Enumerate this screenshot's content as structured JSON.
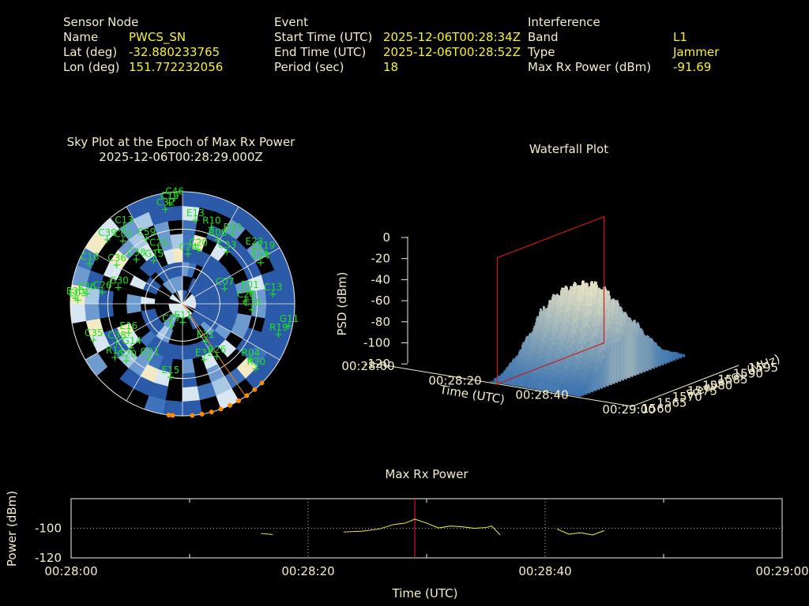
{
  "header": {
    "sensor_node": {
      "heading": "Sensor Node",
      "rows": [
        {
          "label": "Name",
          "value": "PWCS_SN"
        },
        {
          "label": "Lat (deg)",
          "value": "-32.880233765"
        },
        {
          "label": "Lon (deg)",
          "value": "151.772232056"
        }
      ]
    },
    "event": {
      "heading": "Event",
      "rows": [
        {
          "label": "Start Time (UTC)",
          "value": "2025-12-06T00:28:34Z"
        },
        {
          "label": "End Time (UTC)",
          "value": "2025-12-06T00:28:52Z"
        },
        {
          "label": "Period (sec)",
          "value": "18"
        }
      ]
    },
    "interference": {
      "heading": "Interference",
      "rows": [
        {
          "label": "Band",
          "value": "L1"
        },
        {
          "label": "Type",
          "value": "Jammer"
        },
        {
          "label": "Max Rx Power (dBm)",
          "value": "-91.69"
        }
      ]
    }
  },
  "colors": {
    "label": "#f5eecb",
    "value": "#f6f13a",
    "satellite": "#1fe01f",
    "marker": "#ff8c00",
    "series": "#f6f13a",
    "cursor": "#d01818",
    "waterfall_low": "#5c8fc8",
    "waterfall_high": "#f7edc4"
  },
  "chart_data": [
    {
      "type": "scatter",
      "id": "sky-plot",
      "title": "Sky Plot at the Epoch of Max Rx Power",
      "subtitle": "2025-12-06T00:28:29.000Z",
      "projection": "polar",
      "satellites": [
        {
          "id": "C13",
          "az": 322,
          "el": 12
        },
        {
          "id": "C39",
          "az": 310,
          "el": 10
        },
        {
          "id": "C19",
          "az": 352,
          "el": 8
        },
        {
          "id": "C46",
          "az": 355,
          "el": 5
        },
        {
          "id": "C32",
          "az": 349,
          "el": 13
        },
        {
          "id": "E13",
          "az": 8,
          "el": 22
        },
        {
          "id": "C36",
          "az": 300,
          "el": 28
        },
        {
          "id": "C16",
          "az": 293,
          "el": 8
        },
        {
          "id": "C38",
          "az": 313,
          "el": 38
        },
        {
          "id": "C01",
          "az": 316,
          "el": 20
        },
        {
          "id": "C59",
          "az": 330,
          "el": 30
        },
        {
          "id": "R10",
          "az": 20,
          "el": 25
        },
        {
          "id": "R08",
          "az": 28,
          "el": 32
        },
        {
          "id": "R93",
          "az": 35,
          "el": 22
        },
        {
          "id": "C25",
          "az": 335,
          "el": 42
        },
        {
          "id": "G15",
          "az": 325,
          "el": 48
        },
        {
          "id": "C20",
          "az": 15,
          "el": 45
        },
        {
          "id": "C24",
          "az": 5,
          "el": 50
        },
        {
          "id": "C33",
          "az": 40,
          "el": 36
        },
        {
          "id": "E23",
          "az": 52,
          "el": 18
        },
        {
          "id": "E19",
          "az": 58,
          "el": 12
        },
        {
          "id": "E24",
          "az": 62,
          "el": 20
        },
        {
          "id": "C26",
          "az": 278,
          "el": 24
        },
        {
          "id": "G30",
          "az": 284,
          "el": 36
        },
        {
          "id": "E03",
          "az": 272,
          "el": 5
        },
        {
          "id": "E30",
          "az": 273,
          "el": 3
        },
        {
          "id": "E36",
          "az": 276,
          "el": 12
        },
        {
          "id": "C07",
          "az": 70,
          "el": 55
        },
        {
          "id": "E01",
          "az": 80,
          "el": 36
        },
        {
          "id": "C13b",
          "az": 84,
          "el": 18
        },
        {
          "id": "C28",
          "az": 88,
          "el": 40
        },
        {
          "id": "E16",
          "az": 242,
          "el": 40
        },
        {
          "id": "C30",
          "az": 95,
          "el": 35
        },
        {
          "id": "C27",
          "az": 210,
          "el": 70
        },
        {
          "id": "E11",
          "az": 182,
          "el": 75
        },
        {
          "id": "C38b",
          "az": 240,
          "el": 28
        },
        {
          "id": "C35",
          "az": 248,
          "el": 12
        },
        {
          "id": "G14",
          "az": 230,
          "el": 35
        },
        {
          "id": "R11",
          "az": 232,
          "el": 20
        },
        {
          "id": "G20",
          "az": 225,
          "el": 25
        },
        {
          "id": "G21",
          "az": 212,
          "el": 38
        },
        {
          "id": "E31",
          "az": 150,
          "el": 55
        },
        {
          "id": "R19",
          "az": 108,
          "el": 10
        },
        {
          "id": "G11",
          "az": 102,
          "el": 4
        },
        {
          "id": "R26",
          "az": 148,
          "el": 40
        },
        {
          "id": "E32",
          "az": 160,
          "el": 42
        },
        {
          "id": "R04",
          "az": 130,
          "el": 20
        },
        {
          "id": "R20",
          "az": 132,
          "el": 12
        },
        {
          "id": "E15",
          "az": 190,
          "el": 30
        }
      ],
      "interference_markers": [
        {
          "az": 135,
          "el": 0
        },
        {
          "az": 140,
          "el": 0
        },
        {
          "az": 145,
          "el": 0
        },
        {
          "az": 150,
          "el": 0
        },
        {
          "az": 155,
          "el": 0
        },
        {
          "az": 160,
          "el": 0
        },
        {
          "az": 165,
          "el": 0
        },
        {
          "az": 170,
          "el": 0
        },
        {
          "az": 175,
          "el": 0
        },
        {
          "az": 185,
          "el": 0
        },
        {
          "az": 187,
          "el": 0
        }
      ]
    },
    {
      "type": "heatmap",
      "id": "waterfall-plot",
      "title": "Waterfall Plot",
      "xlabel": "Time (UTC)",
      "ylabel": "Frequency (MHz)",
      "zlabel": "PSD (dBm)",
      "x_ticks": [
        "00:28:00",
        "00:28:20",
        "00:28:40",
        "00:29:00"
      ],
      "y_ticks": [
        "1560",
        "1565",
        "1570",
        "1575",
        "1580",
        "1585",
        "1590",
        "1595"
      ],
      "z_ticks": [
        "0",
        "-20",
        "-40",
        "-60",
        "-80",
        "-100",
        "-120"
      ],
      "zlim": [
        -120,
        0
      ],
      "ylim": [
        1560,
        1595
      ],
      "cursor_time": "00:28:29",
      "profile_time": [
        {
          "t": 28,
          "psd": -85
        },
        {
          "t": 30,
          "psd": -55
        },
        {
          "t": 32,
          "psd": -45
        },
        {
          "t": 34,
          "psd": -38
        },
        {
          "t": 36,
          "psd": -36
        },
        {
          "t": 38,
          "psd": -32
        },
        {
          "t": 40,
          "psd": -33
        },
        {
          "t": 42,
          "psd": -42
        },
        {
          "t": 44,
          "psd": -55
        },
        {
          "t": 46,
          "psd": -60
        },
        {
          "t": 48,
          "psd": -75
        }
      ]
    },
    {
      "type": "line",
      "id": "max-rx-power",
      "title": "Max Rx Power",
      "xlabel": "Time (UTC)",
      "ylabel": "Power (dBm)",
      "x_ticks": [
        "00:28:00",
        "00:28:20",
        "00:28:40",
        "00:29:00"
      ],
      "y_ticks": [
        "-100",
        "-120"
      ],
      "xlim_sec": [
        0,
        60
      ],
      "ylim": [
        -120,
        -80
      ],
      "cursor_sec": 29,
      "series": [
        {
          "values": [
            [
              16.0,
              -103.5
            ],
            [
              17.0,
              -104.2
            ]
          ]
        },
        {
          "values": [
            [
              23.0,
              -102.5
            ],
            [
              24.5,
              -102.0
            ],
            [
              26.0,
              -100.5
            ],
            [
              27.2,
              -97.5
            ],
            [
              28.2,
              -96.5
            ],
            [
              29.0,
              -93.8
            ],
            [
              30.0,
              -96.5
            ],
            [
              31.0,
              -99.8
            ],
            [
              32.0,
              -98.5
            ],
            [
              33.0,
              -99.0
            ],
            [
              34.0,
              -100.0
            ],
            [
              35.0,
              -99.5
            ],
            [
              35.5,
              -98.5
            ],
            [
              36.2,
              -104.5
            ]
          ]
        },
        {
          "values": [
            [
              41.0,
              -100.5
            ],
            [
              42.0,
              -104.0
            ],
            [
              43.0,
              -103.0
            ],
            [
              44.0,
              -104.5
            ],
            [
              45.0,
              -101.5
            ]
          ]
        }
      ]
    }
  ]
}
